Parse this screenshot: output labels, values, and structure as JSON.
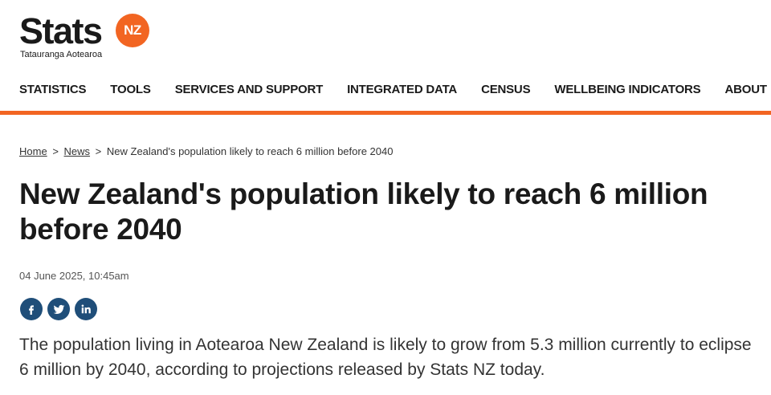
{
  "brand": {
    "wordmark": "Stats",
    "badge": "NZ",
    "subtitle": "Tatauranga Aotearoa",
    "accent_color": "#f26522"
  },
  "nav": {
    "items": [
      {
        "label": "STATISTICS"
      },
      {
        "label": "TOOLS"
      },
      {
        "label": "SERVICES AND SUPPORT"
      },
      {
        "label": "INTEGRATED DATA"
      },
      {
        "label": "CENSUS"
      },
      {
        "label": "WELLBEING INDICATORS"
      },
      {
        "label": "ABOUT"
      }
    ]
  },
  "breadcrumb": {
    "home": "Home",
    "sep1": ">",
    "news": "News",
    "sep2": ">",
    "current": "New Zealand's population likely to reach 6 million before 2040"
  },
  "article": {
    "title": "New Zealand's population likely to reach 6 million before 2040",
    "date": "04 June 2025, 10:45am",
    "lead": "The population living in Aotearoa New Zealand is likely to grow from 5.3 million currently to eclipse 6 million by 2040, according to projections released by Stats NZ today."
  },
  "share": {
    "buttons": [
      {
        "icon": "facebook-icon"
      },
      {
        "icon": "twitter-icon"
      },
      {
        "icon": "linkedin-icon"
      }
    ],
    "color": "#1f4e79"
  }
}
